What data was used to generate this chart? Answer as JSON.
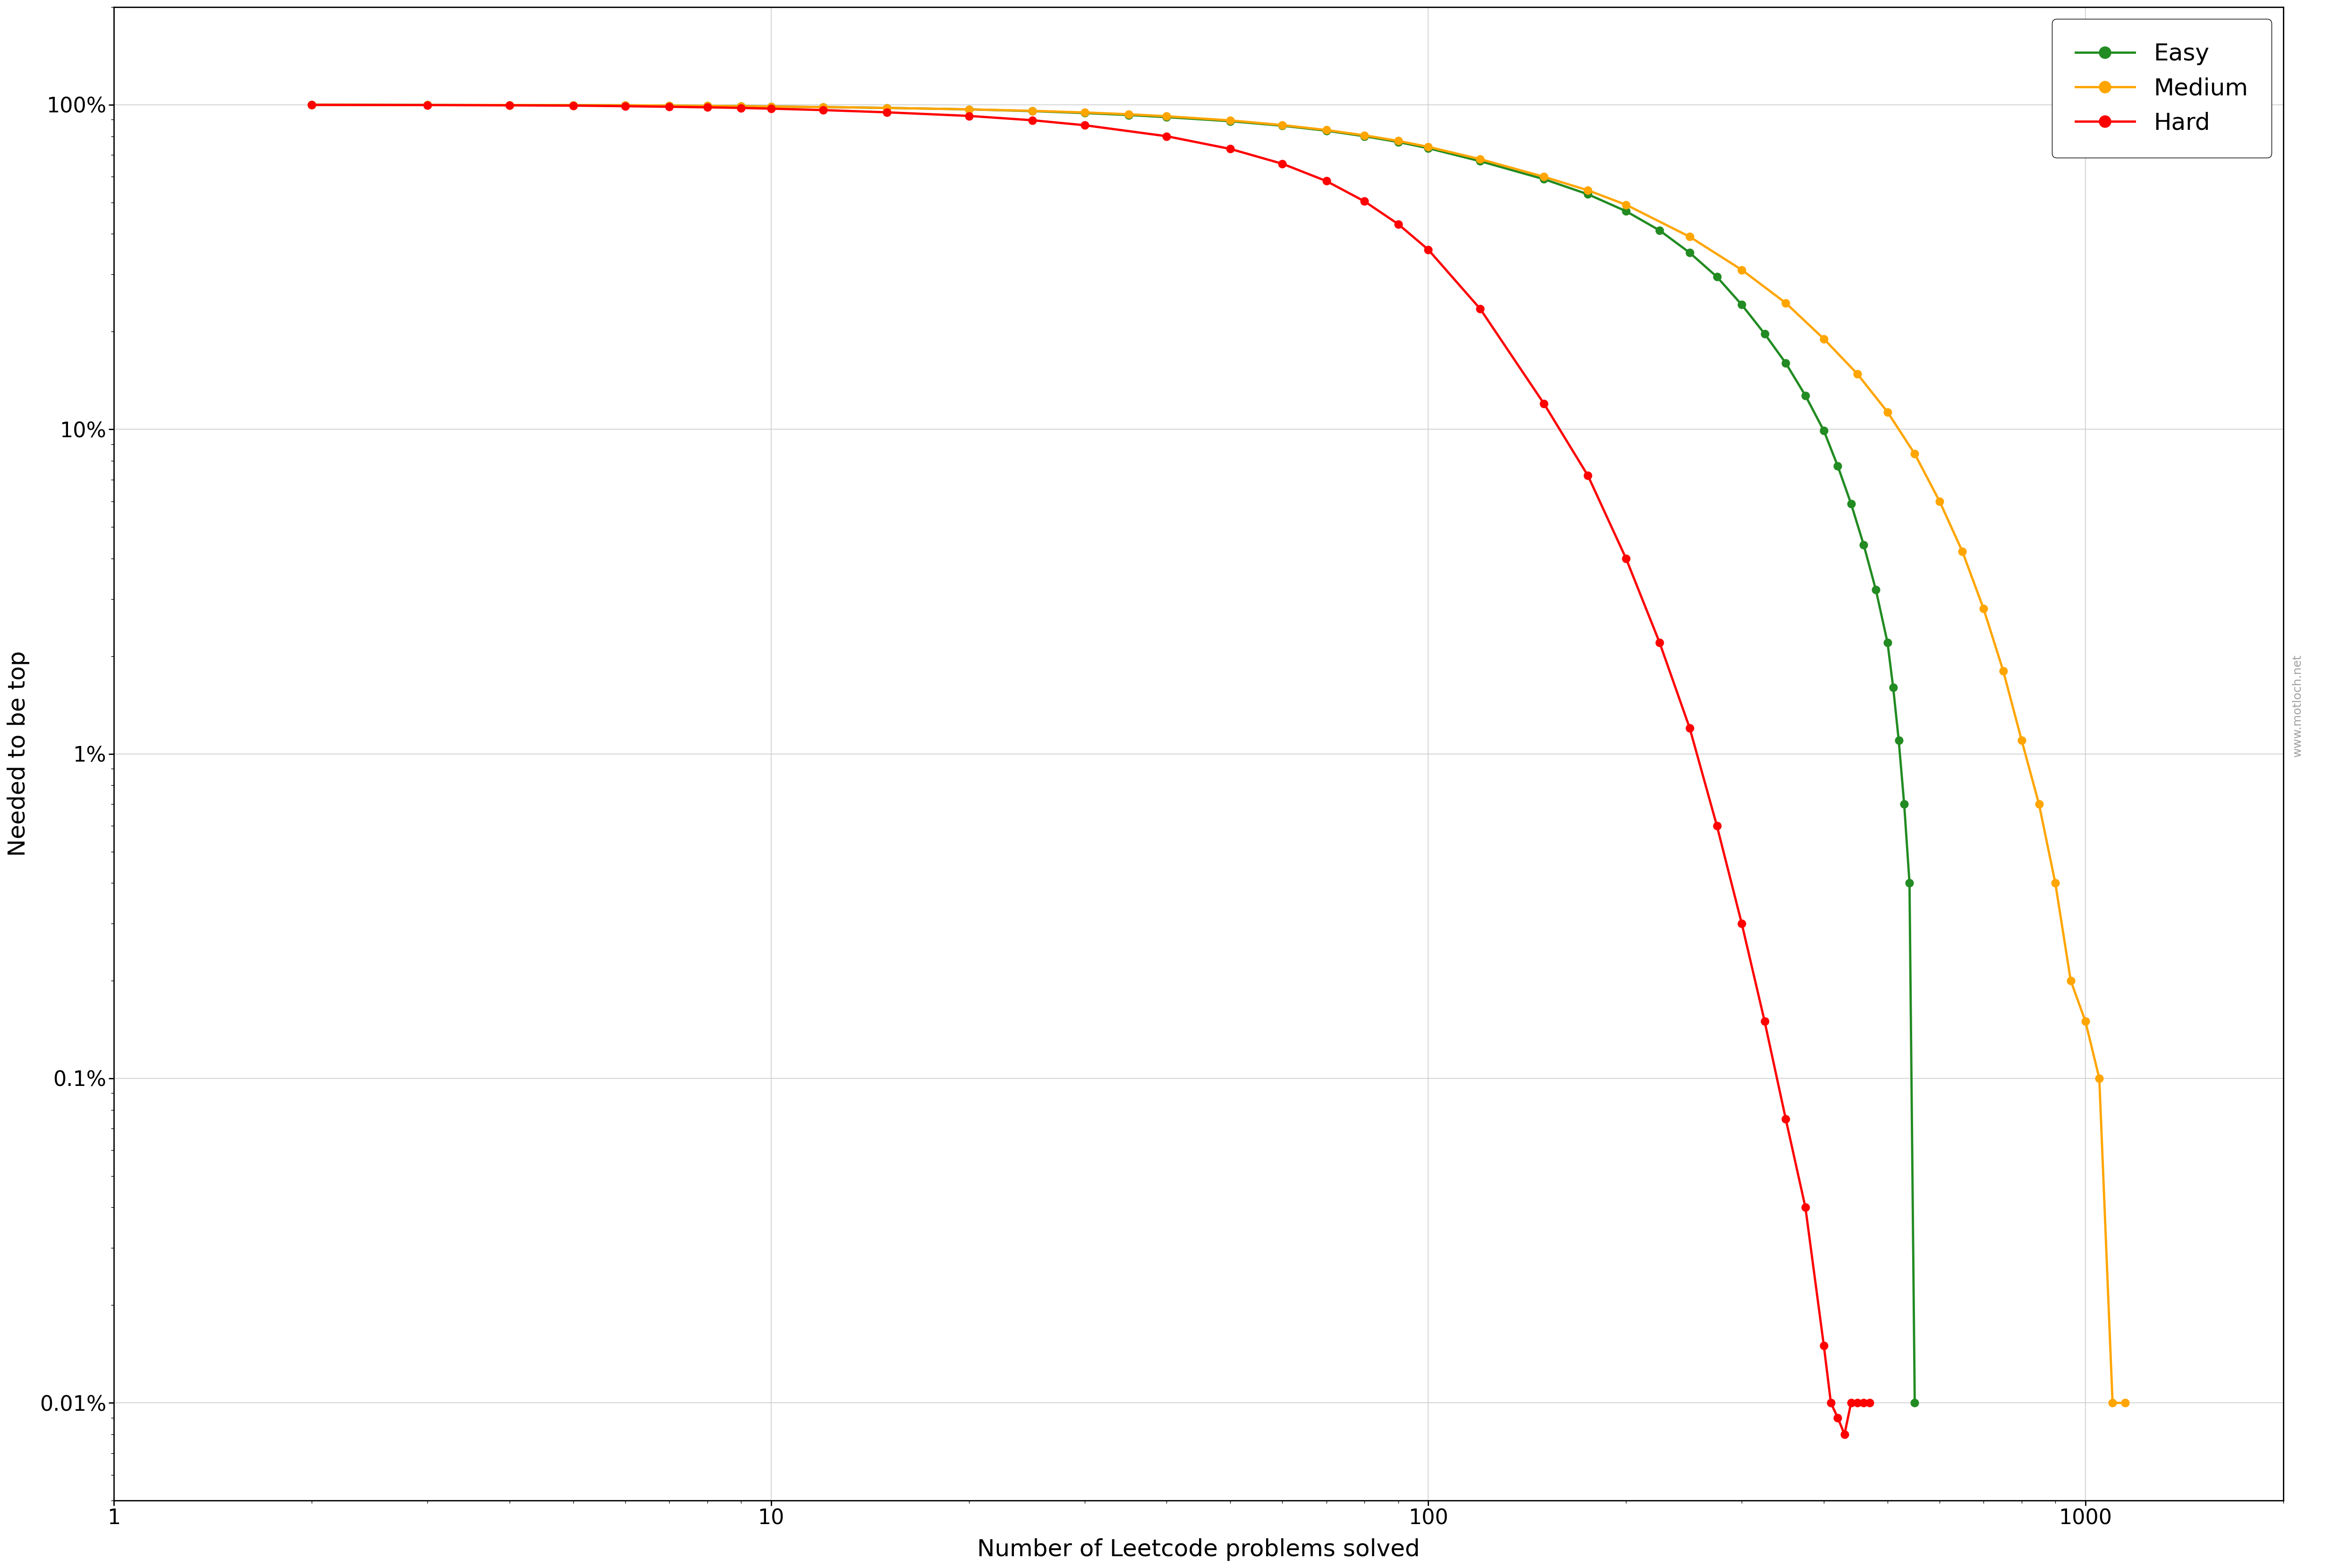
{
  "title": "",
  "xlabel": "Number of Leetcode problems solved",
  "ylabel": "Needed to be top",
  "background_color": "#ffffff",
  "grid_color": "#cccccc",
  "watermark": "www.motloch.net",
  "series": {
    "Easy": {
      "color": "#228B22",
      "x": [
        2,
        3,
        4,
        5,
        6,
        7,
        8,
        9,
        10,
        12,
        15,
        20,
        25,
        30,
        35,
        40,
        50,
        60,
        70,
        80,
        90,
        100,
        120,
        150,
        175,
        200,
        225,
        250,
        275,
        300,
        325,
        350,
        375,
        400,
        420,
        440,
        460,
        480,
        500,
        510,
        520,
        530,
        540,
        550
      ],
      "y": [
        0.9998,
        0.999,
        0.998,
        0.997,
        0.996,
        0.994,
        0.992,
        0.99,
        0.988,
        0.984,
        0.978,
        0.968,
        0.956,
        0.943,
        0.93,
        0.916,
        0.89,
        0.862,
        0.832,
        0.8,
        0.768,
        0.735,
        0.67,
        0.59,
        0.53,
        0.47,
        0.41,
        0.35,
        0.295,
        0.242,
        0.197,
        0.16,
        0.127,
        0.099,
        0.077,
        0.059,
        0.044,
        0.032,
        0.022,
        0.016,
        0.011,
        0.007,
        0.004,
        0.0001
      ]
    },
    "Medium": {
      "color": "#FFA500",
      "x": [
        2,
        3,
        4,
        5,
        6,
        7,
        8,
        9,
        10,
        12,
        15,
        20,
        25,
        30,
        35,
        40,
        50,
        60,
        70,
        80,
        90,
        100,
        120,
        150,
        175,
        200,
        250,
        300,
        350,
        400,
        450,
        500,
        550,
        600,
        650,
        700,
        750,
        800,
        850,
        900,
        950,
        1000,
        1050,
        1100,
        1150
      ],
      "y": [
        0.9999,
        0.999,
        0.998,
        0.997,
        0.996,
        0.994,
        0.992,
        0.99,
        0.988,
        0.984,
        0.978,
        0.968,
        0.958,
        0.947,
        0.935,
        0.922,
        0.895,
        0.866,
        0.836,
        0.805,
        0.774,
        0.742,
        0.68,
        0.6,
        0.545,
        0.492,
        0.392,
        0.31,
        0.245,
        0.19,
        0.148,
        0.113,
        0.084,
        0.06,
        0.042,
        0.028,
        0.018,
        0.011,
        0.007,
        0.004,
        0.002,
        0.0015,
        0.001,
        0.0001,
        0.0001
      ]
    },
    "Hard": {
      "color": "#FF0000",
      "x": [
        2,
        3,
        4,
        5,
        6,
        7,
        8,
        9,
        10,
        12,
        15,
        20,
        25,
        30,
        40,
        50,
        60,
        70,
        80,
        90,
        100,
        120,
        150,
        175,
        200,
        225,
        250,
        275,
        300,
        325,
        350,
        375,
        400,
        410,
        420,
        430,
        440,
        450,
        460,
        470
      ],
      "y": [
        0.9993,
        0.998,
        0.996,
        0.994,
        0.99,
        0.986,
        0.982,
        0.978,
        0.973,
        0.963,
        0.948,
        0.924,
        0.896,
        0.865,
        0.8,
        0.731,
        0.658,
        0.582,
        0.504,
        0.429,
        0.358,
        0.235,
        0.12,
        0.072,
        0.04,
        0.022,
        0.012,
        0.006,
        0.003,
        0.0015,
        0.00075,
        0.0004,
        0.00015,
        0.0001,
        9e-05,
        8e-05,
        0.0001,
        0.0001,
        0.0001,
        0.0001
      ]
    }
  },
  "yticks": [
    1.0,
    0.1,
    0.01,
    0.001,
    0.0001
  ],
  "ytick_labels": [
    "100%",
    "10%",
    "1%",
    "0.1%",
    "0.01%"
  ],
  "xlim": [
    1,
    2000
  ],
  "ylim": [
    5e-05,
    2.0
  ],
  "legend_fontsize": 36,
  "axis_label_fontsize": 36,
  "tick_fontsize": 32,
  "marker_size": 12,
  "line_width": 3.5
}
